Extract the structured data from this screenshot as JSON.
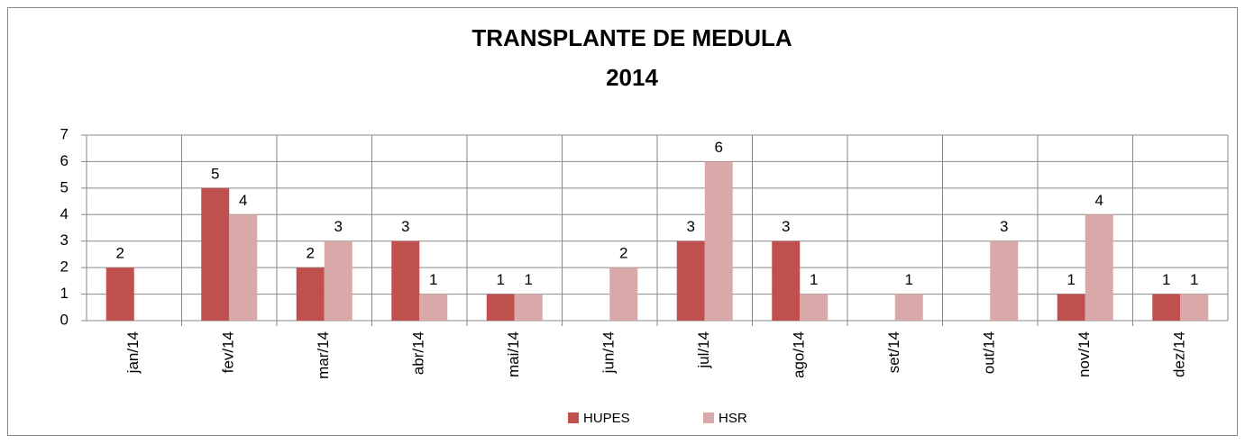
{
  "chart_data": {
    "type": "bar",
    "title": "TRANSPLANTE DE MEDULA",
    "subtitle": "2014",
    "categories": [
      "jan/14",
      "fev/14",
      "mar/14",
      "abr/14",
      "mai/14",
      "jun/14",
      "jul/14",
      "ago/14",
      "set/14",
      "out/14",
      "nov/14",
      "dez/14"
    ],
    "series": [
      {
        "name": "HUPES",
        "color": "#c0504d",
        "values": [
          2,
          5,
          2,
          3,
          1,
          null,
          3,
          3,
          null,
          null,
          1,
          1
        ]
      },
      {
        "name": "HSR",
        "color": "#d9a8a8",
        "values": [
          null,
          4,
          3,
          1,
          1,
          2,
          6,
          1,
          1,
          3,
          4,
          1
        ]
      }
    ],
    "ylim": [
      0,
      7
    ],
    "yticks": [
      0,
      1,
      2,
      3,
      4,
      5,
      6,
      7
    ],
    "grid": true,
    "legend": "bottom"
  }
}
